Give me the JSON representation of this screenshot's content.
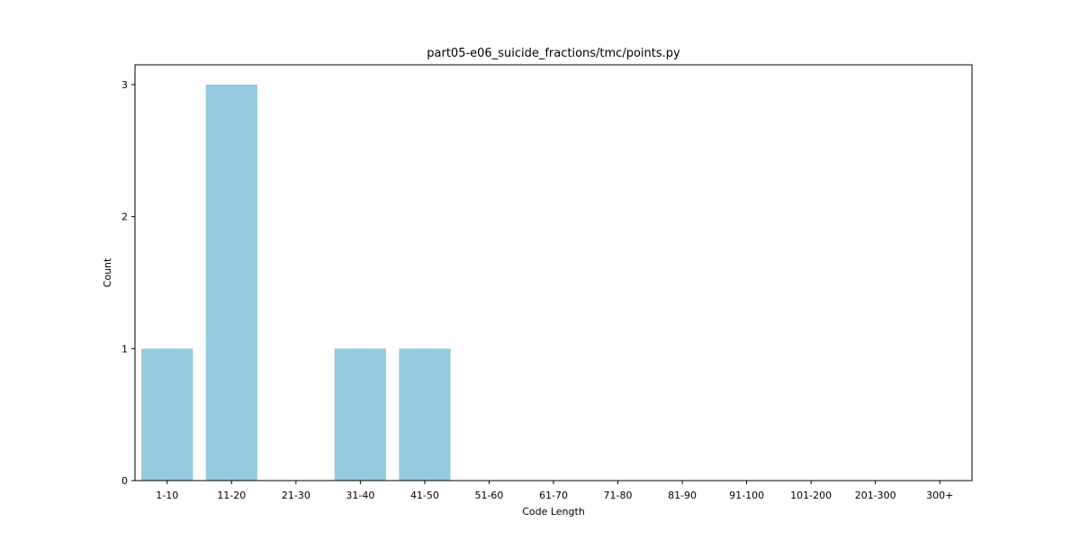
{
  "chart_data": {
    "type": "bar",
    "title": "part05-e06_suicide_fractions/tmc/points.py",
    "xlabel": "Code Length",
    "ylabel": "Count",
    "categories": [
      "1-10",
      "11-20",
      "21-30",
      "31-40",
      "41-50",
      "51-60",
      "61-70",
      "71-80",
      "81-90",
      "91-100",
      "101-200",
      "201-300",
      "300+"
    ],
    "values": [
      1,
      3,
      0,
      1,
      1,
      0,
      0,
      0,
      0,
      0,
      0,
      0,
      0
    ],
    "yticks": [
      "0",
      "1",
      "2",
      "3"
    ],
    "ylim": [
      0,
      3.15
    ],
    "grid": false,
    "legend": "none",
    "bar_color": "#95c9df"
  }
}
